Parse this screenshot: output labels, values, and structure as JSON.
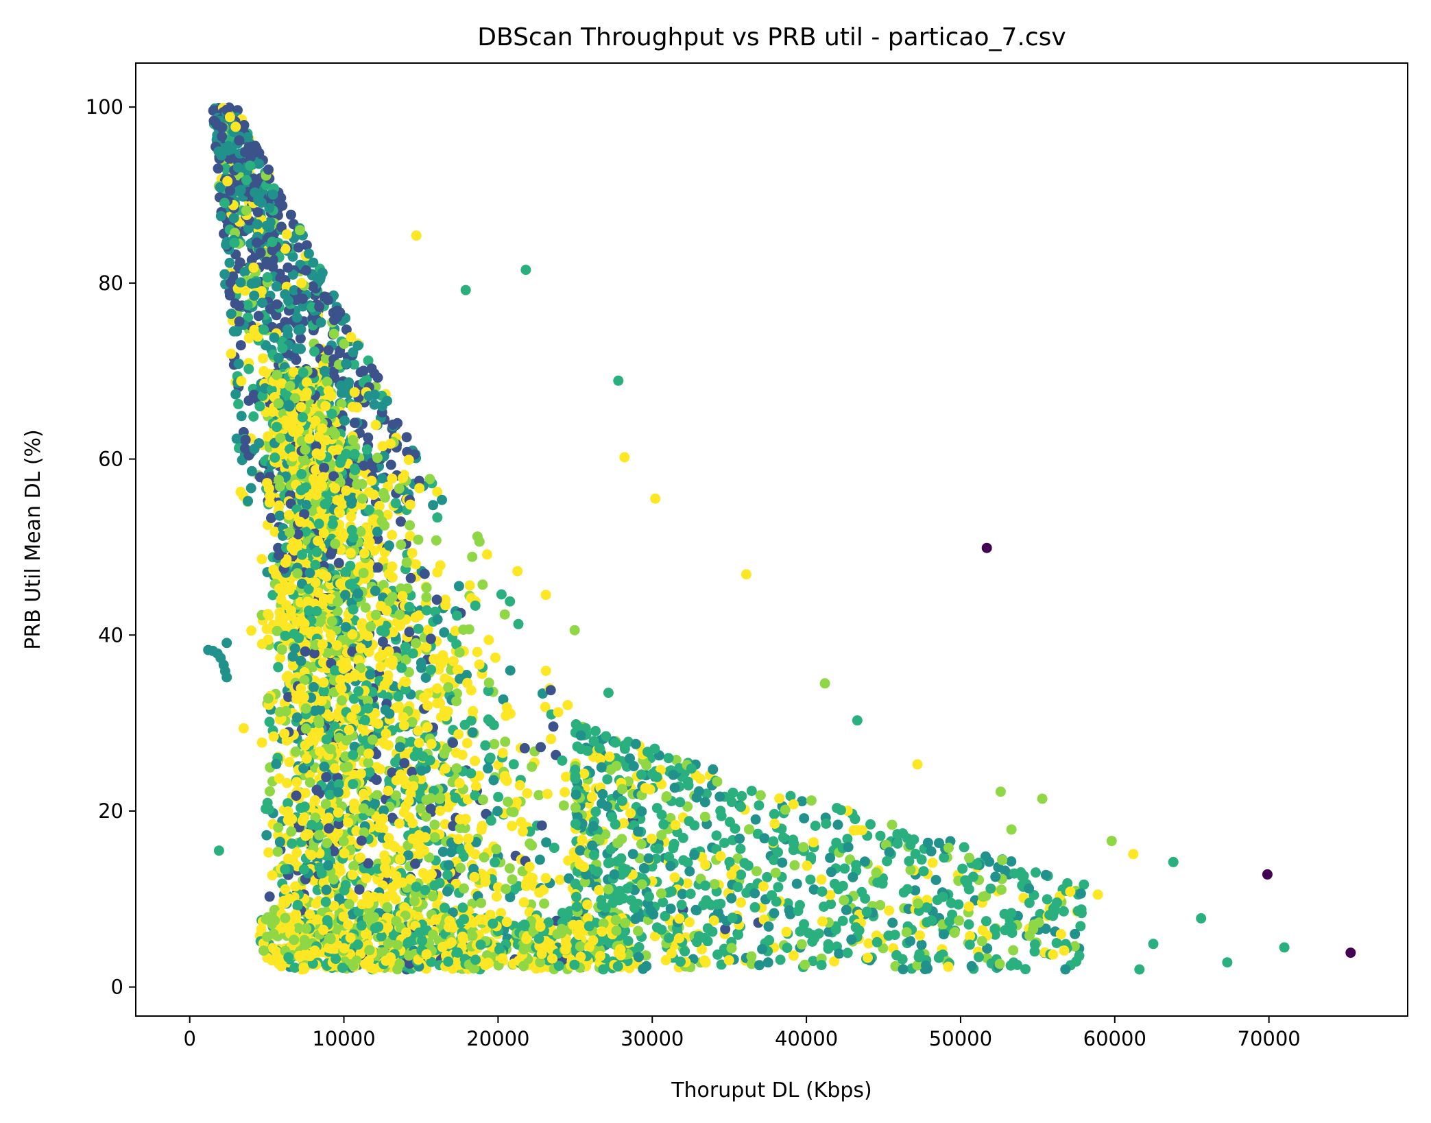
{
  "chart_data": {
    "type": "scatter",
    "title": "DBScan Throughput vs PRB util - particao_7.csv",
    "xlabel": "Thoruput DL (Kbps)",
    "ylabel": "PRB Util Mean DL (%)",
    "xlim": [
      -3500,
      79000
    ],
    "ylim": [
      -3.3,
      105
    ],
    "xticks": [
      0,
      10000,
      20000,
      30000,
      40000,
      50000,
      60000,
      70000
    ],
    "xtick_labels": [
      "0",
      "10000",
      "20000",
      "30000",
      "40000",
      "50000",
      "60000",
      "70000"
    ],
    "yticks": [
      0,
      20,
      40,
      60,
      80,
      100
    ],
    "ytick_labels": [
      "0",
      "20",
      "40",
      "60",
      "80",
      "100"
    ],
    "grid": false,
    "colormap": "viridis",
    "cluster_colors": {
      "noise": "#440154",
      "c0": "#3b528b",
      "c1": "#21918c",
      "c2": "#2ab07f",
      "c3": "#8fd744",
      "c4": "#fde725"
    },
    "outliers": [
      {
        "x": 51700,
        "y": 49.9,
        "cluster": "noise"
      },
      {
        "x": 69900,
        "y": 12.8,
        "cluster": "noise"
      },
      {
        "x": 75300,
        "y": 3.9,
        "cluster": "noise"
      },
      {
        "x": 21800,
        "y": 81.5,
        "cluster": "c2"
      },
      {
        "x": 17900,
        "y": 79.2,
        "cluster": "c2"
      },
      {
        "x": 27800,
        "y": 68.9,
        "cluster": "c2"
      },
      {
        "x": 1900,
        "y": 15.5,
        "cluster": "c2"
      },
      {
        "x": 71000,
        "y": 4.5,
        "cluster": "c2"
      },
      {
        "x": 67300,
        "y": 2.8,
        "cluster": "c2"
      },
      {
        "x": 65600,
        "y": 7.8,
        "cluster": "c2"
      },
      {
        "x": 63800,
        "y": 14.2,
        "cluster": "c2"
      },
      {
        "x": 61600,
        "y": 2.0,
        "cluster": "c2"
      },
      {
        "x": 59800,
        "y": 16.6,
        "cluster": "c3"
      },
      {
        "x": 55300,
        "y": 21.4,
        "cluster": "c3"
      },
      {
        "x": 52600,
        "y": 22.2,
        "cluster": "c3"
      },
      {
        "x": 57500,
        "y": 2.9,
        "cluster": "c2"
      },
      {
        "x": 62500,
        "y": 4.9,
        "cluster": "c2"
      },
      {
        "x": 36100,
        "y": 46.9,
        "cluster": "c4"
      },
      {
        "x": 30200,
        "y": 55.5,
        "cluster": "c4"
      },
      {
        "x": 28200,
        "y": 60.2,
        "cluster": "c4"
      },
      {
        "x": 41200,
        "y": 34.5,
        "cluster": "c3"
      },
      {
        "x": 43300,
        "y": 30.3,
        "cluster": "c2"
      },
      {
        "x": 47200,
        "y": 25.3,
        "cluster": "c4"
      },
      {
        "x": 14700,
        "y": 85.4,
        "cluster": "c4"
      },
      {
        "x": 2400,
        "y": 39.1,
        "cluster": "c1"
      },
      {
        "x": 1200,
        "y": 38.3,
        "cluster": "c1"
      },
      {
        "x": 1500,
        "y": 38.2,
        "cluster": "c1"
      },
      {
        "x": 1800,
        "y": 37.9,
        "cluster": "c1"
      },
      {
        "x": 2000,
        "y": 37.4,
        "cluster": "c1"
      },
      {
        "x": 2200,
        "y": 36.6,
        "cluster": "c1"
      },
      {
        "x": 2300,
        "y": 35.9,
        "cluster": "c1"
      },
      {
        "x": 2400,
        "y": 35.2,
        "cluster": "c1"
      },
      {
        "x": 3500,
        "y": 29.4,
        "cluster": "c4"
      },
      {
        "x": 4000,
        "y": 40.5,
        "cluster": "c4"
      },
      {
        "x": 61200,
        "y": 15.1,
        "cluster": "c4"
      },
      {
        "x": 58900,
        "y": 10.5,
        "cluster": "c4"
      },
      {
        "x": 56000,
        "y": 3.7,
        "cluster": "c4"
      },
      {
        "x": 49200,
        "y": 2.3,
        "cluster": "c4"
      },
      {
        "x": 53300,
        "y": 17.9,
        "cluster": "c3"
      }
    ]
  }
}
